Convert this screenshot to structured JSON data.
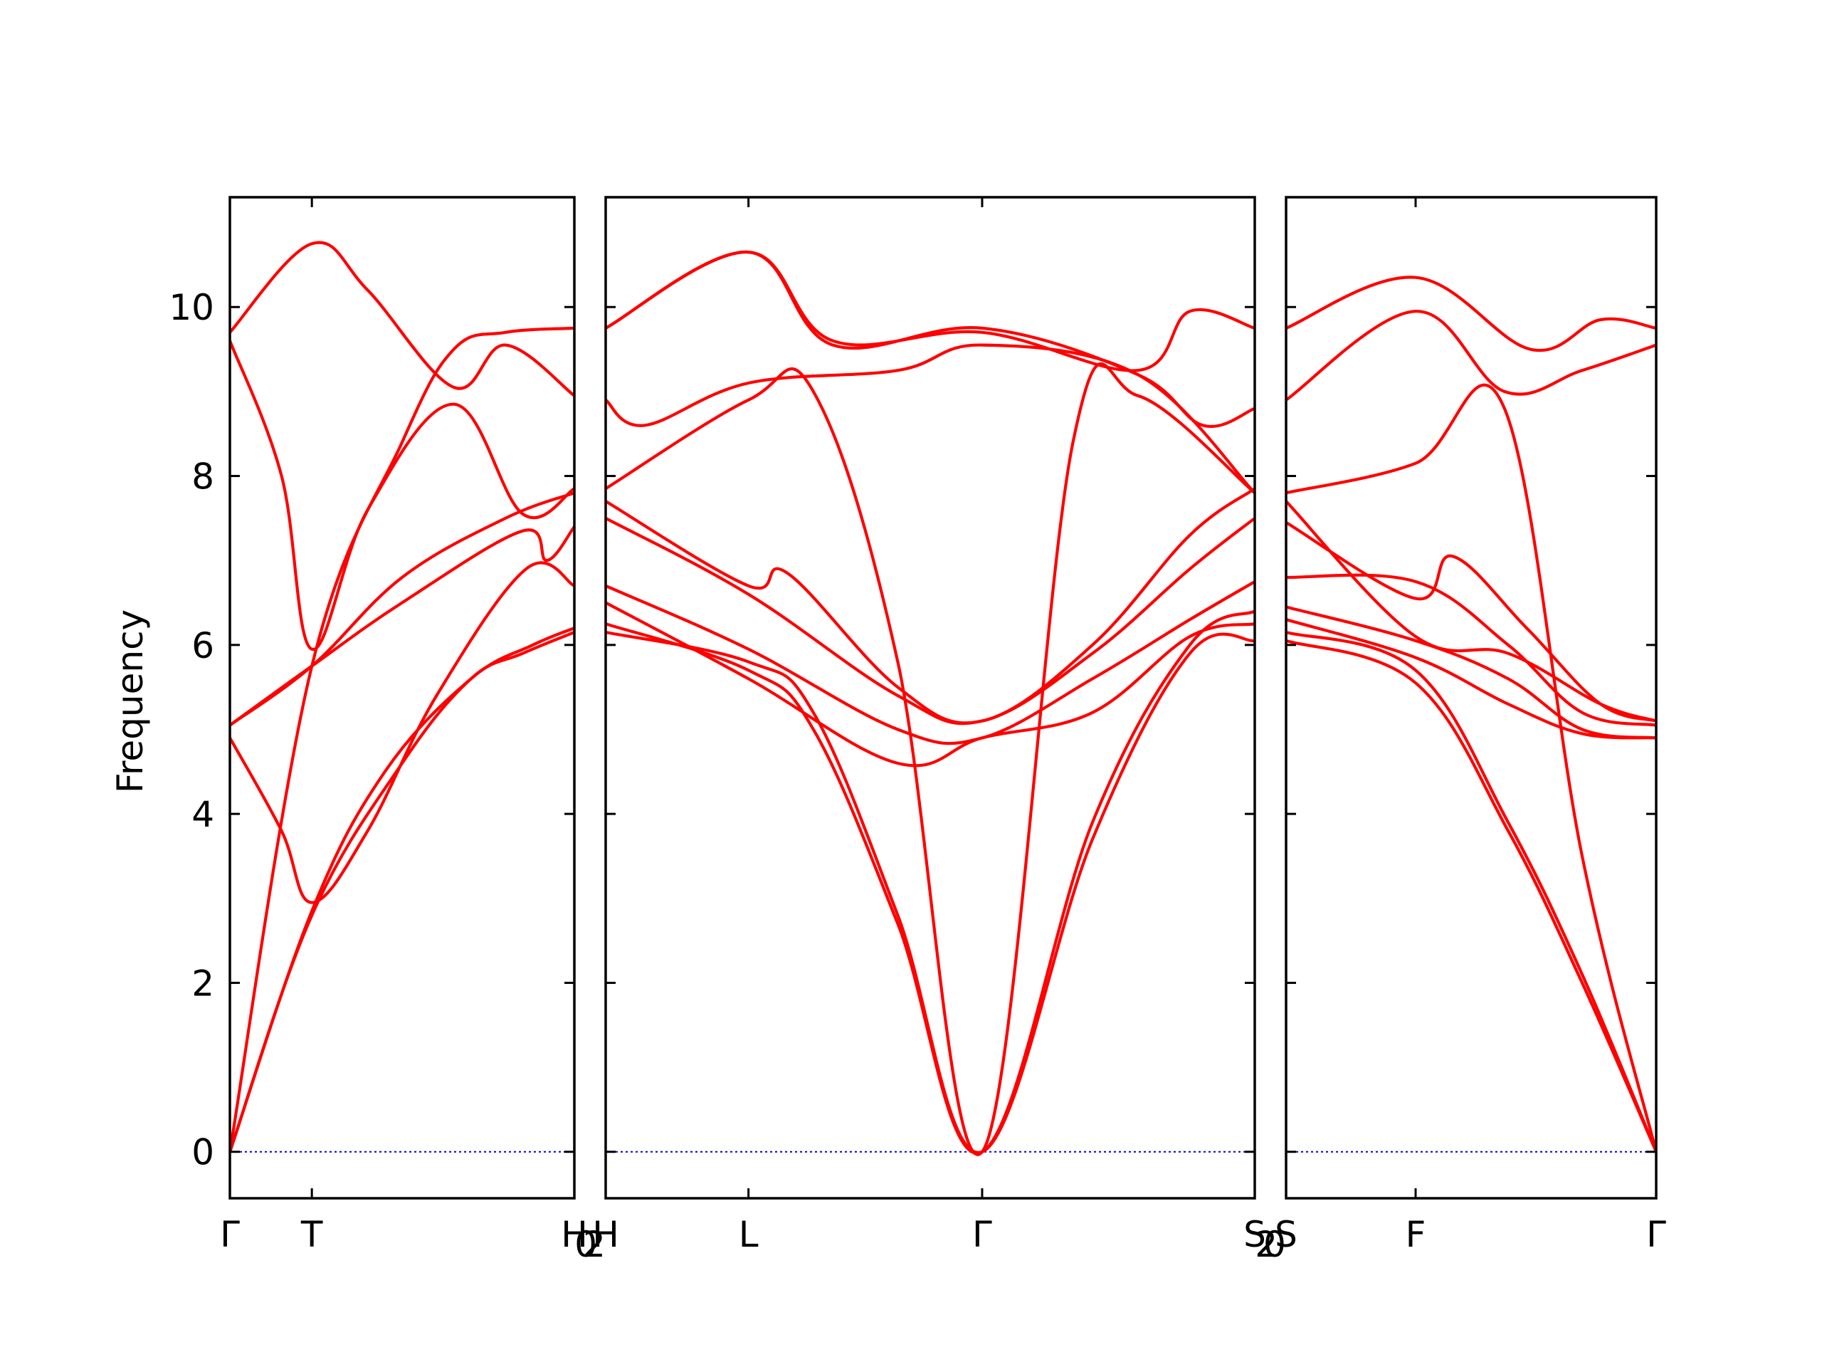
{
  "chart_data": {
    "type": "line",
    "title": "",
    "ylabel": "Frequency",
    "xlabel": "",
    "ylim": [
      -0.55,
      11.3
    ],
    "yticks": [
      0,
      2,
      4,
      6,
      8,
      10
    ],
    "grid": false,
    "legend": "none",
    "colors": {
      "band": "#ff0000",
      "zero_line": "#0000cc",
      "frame": "#000000"
    },
    "panels": [
      {
        "xlim": [
          0,
          1
        ],
        "xticks": [
          {
            "x": 0,
            "label": "Γ"
          },
          {
            "x": 0.238,
            "label": "T"
          },
          {
            "x": 1,
            "label": "H"
          }
        ],
        "edge_labels": {
          "right": "2"
        },
        "bands": [
          [
            [
              0,
              0
            ],
            [
              0.238,
              2.8
            ],
            [
              0.5,
              4.6
            ],
            [
              0.7,
              5.6
            ],
            [
              0.85,
              5.9
            ],
            [
              1,
              6.15
            ]
          ],
          [
            [
              0,
              0
            ],
            [
              0.238,
              2.85
            ],
            [
              0.45,
              4.5
            ],
            [
              0.7,
              5.6
            ],
            [
              0.88,
              6.0
            ],
            [
              1,
              6.2
            ]
          ],
          [
            [
              0,
              0
            ],
            [
              0.238,
              5.75
            ],
            [
              0.5,
              8.4
            ],
            [
              0.65,
              9.5
            ],
            [
              0.8,
              9.7
            ],
            [
              1,
              9.75
            ]
          ],
          [
            [
              0,
              4.9
            ],
            [
              0.15,
              3.8
            ],
            [
              0.238,
              2.95
            ],
            [
              0.4,
              3.8
            ],
            [
              0.6,
              5.4
            ],
            [
              0.86,
              6.9
            ],
            [
              1,
              6.7
            ]
          ],
          [
            [
              0,
              5.05
            ],
            [
              0.238,
              5.75
            ],
            [
              0.5,
              6.5
            ],
            [
              0.85,
              7.35
            ],
            [
              0.92,
              7.0
            ],
            [
              1,
              7.4
            ]
          ],
          [
            [
              0,
              5.05
            ],
            [
              0.238,
              5.75
            ],
            [
              0.5,
              6.8
            ],
            [
              0.8,
              7.5
            ],
            [
              1,
              7.8
            ]
          ],
          [
            [
              0,
              9.6
            ],
            [
              0.15,
              8.0
            ],
            [
              0.238,
              5.95
            ],
            [
              0.4,
              7.6
            ],
            [
              0.65,
              8.85
            ],
            [
              0.85,
              7.55
            ],
            [
              1,
              7.85
            ]
          ],
          [
            [
              0,
              9.7
            ],
            [
              0.238,
              10.75
            ],
            [
              0.4,
              10.2
            ],
            [
              0.65,
              9.05
            ],
            [
              0.8,
              9.55
            ],
            [
              1,
              8.95
            ]
          ]
        ]
      },
      {
        "xlim": [
          0,
          1
        ],
        "xticks": [
          {
            "x": 0,
            "label": "H"
          },
          {
            "x": 0.22,
            "label": "L"
          },
          {
            "x": 0.58,
            "label": "Γ"
          },
          {
            "x": 1,
            "label": "S"
          }
        ],
        "edge_labels": {
          "left": "0",
          "right": "0"
        },
        "bands": [
          [
            [
              0,
              6.15
            ],
            [
              0.22,
              5.8
            ],
            [
              0.32,
              5.2
            ],
            [
              0.45,
              2.8
            ],
            [
              0.58,
              0
            ],
            [
              0.75,
              3.7
            ],
            [
              0.9,
              5.9
            ],
            [
              1,
              6.05
            ]
          ],
          [
            [
              0,
              6.25
            ],
            [
              0.22,
              5.7
            ],
            [
              0.32,
              5.0
            ],
            [
              0.45,
              2.7
            ],
            [
              0.58,
              0
            ],
            [
              0.75,
              3.9
            ],
            [
              0.9,
              6.0
            ],
            [
              1,
              6.4
            ]
          ],
          [
            [
              0,
              6.5
            ],
            [
              0.22,
              5.6
            ],
            [
              0.45,
              4.6
            ],
            [
              0.58,
              4.9
            ],
            [
              0.75,
              5.2
            ],
            [
              0.9,
              6.1
            ],
            [
              1,
              6.25
            ]
          ],
          [
            [
              0,
              6.7
            ],
            [
              0.22,
              5.95
            ],
            [
              0.45,
              5.0
            ],
            [
              0.58,
              4.9
            ],
            [
              0.75,
              5.6
            ],
            [
              0.9,
              6.3
            ],
            [
              1,
              6.75
            ]
          ],
          [
            [
              0,
              7.5
            ],
            [
              0.22,
              6.6
            ],
            [
              0.45,
              5.4
            ],
            [
              0.58,
              5.1
            ],
            [
              0.75,
              5.9
            ],
            [
              0.9,
              6.9
            ],
            [
              1,
              7.5
            ]
          ],
          [
            [
              0,
              7.7
            ],
            [
              0.22,
              6.7
            ],
            [
              0.28,
              6.85
            ],
            [
              0.45,
              5.5
            ],
            [
              0.58,
              5.1
            ],
            [
              0.75,
              6.0
            ],
            [
              0.9,
              7.3
            ],
            [
              1,
              7.85
            ]
          ],
          [
            [
              0,
              7.85
            ],
            [
              0.22,
              8.9
            ],
            [
              0.32,
              9.0
            ],
            [
              0.45,
              5.8
            ],
            [
              0.58,
              0
            ],
            [
              0.72,
              8.4
            ],
            [
              0.82,
              8.95
            ],
            [
              1,
              7.8
            ]
          ],
          [
            [
              0,
              8.9
            ],
            [
              0.06,
              8.6
            ],
            [
              0.22,
              9.1
            ],
            [
              0.45,
              9.25
            ],
            [
              0.58,
              9.55
            ],
            [
              0.82,
              9.2
            ],
            [
              1,
              7.8
            ]
          ],
          [
            [
              0,
              9.75
            ],
            [
              0.22,
              10.65
            ],
            [
              0.35,
              9.55
            ],
            [
              0.58,
              9.75
            ],
            [
              0.82,
              9.2
            ],
            [
              0.92,
              8.6
            ],
            [
              1,
              8.8
            ]
          ],
          [
            [
              0,
              9.75
            ],
            [
              0.22,
              10.65
            ],
            [
              0.35,
              9.6
            ],
            [
              0.58,
              9.7
            ],
            [
              0.82,
              9.25
            ],
            [
              0.9,
              9.95
            ],
            [
              1,
              9.75
            ]
          ]
        ]
      },
      {
        "xlim": [
          0,
          1
        ],
        "xticks": [
          {
            "x": 0,
            "label": "S"
          },
          {
            "x": 0.35,
            "label": "F"
          },
          {
            "x": 1,
            "label": "Γ"
          }
        ],
        "edge_labels": {
          "left": "2"
        },
        "bands": [
          [
            [
              0,
              6.05
            ],
            [
              0.35,
              5.55
            ],
            [
              0.6,
              3.8
            ],
            [
              0.8,
              2.0
            ],
            [
              1,
              0
            ]
          ],
          [
            [
              0,
              6.15
            ],
            [
              0.35,
              5.7
            ],
            [
              0.6,
              3.9
            ],
            [
              0.8,
              2.1
            ],
            [
              1,
              0
            ]
          ],
          [
            [
              0,
              6.3
            ],
            [
              0.35,
              5.85
            ],
            [
              0.6,
              5.3
            ],
            [
              0.8,
              4.95
            ],
            [
              1,
              4.9
            ]
          ],
          [
            [
              0,
              6.45
            ],
            [
              0.35,
              6.05
            ],
            [
              0.6,
              5.6
            ],
            [
              0.8,
              5.0
            ],
            [
              1,
              4.9
            ]
          ],
          [
            [
              0,
              6.8
            ],
            [
              0.35,
              6.75
            ],
            [
              0.6,
              6.0
            ],
            [
              0.8,
              5.2
            ],
            [
              1,
              5.05
            ]
          ],
          [
            [
              0,
              7.45
            ],
            [
              0.35,
              6.55
            ],
            [
              0.45,
              7.05
            ],
            [
              0.65,
              6.2
            ],
            [
              0.85,
              5.3
            ],
            [
              1,
              5.1
            ]
          ],
          [
            [
              0,
              7.7
            ],
            [
              0.35,
              6.1
            ],
            [
              0.6,
              5.9
            ],
            [
              0.85,
              5.3
            ],
            [
              1,
              5.1
            ]
          ],
          [
            [
              0,
              7.8
            ],
            [
              0.35,
              8.15
            ],
            [
              0.59,
              8.8
            ],
            [
              0.8,
              3.5
            ],
            [
              1,
              0
            ]
          ],
          [
            [
              0,
              8.9
            ],
            [
              0.35,
              9.95
            ],
            [
              0.59,
              9.0
            ],
            [
              0.8,
              9.25
            ],
            [
              1,
              9.55
            ]
          ],
          [
            [
              0,
              9.75
            ],
            [
              0.35,
              10.35
            ],
            [
              0.66,
              9.5
            ],
            [
              0.85,
              9.85
            ],
            [
              1,
              9.75
            ]
          ]
        ]
      }
    ]
  }
}
